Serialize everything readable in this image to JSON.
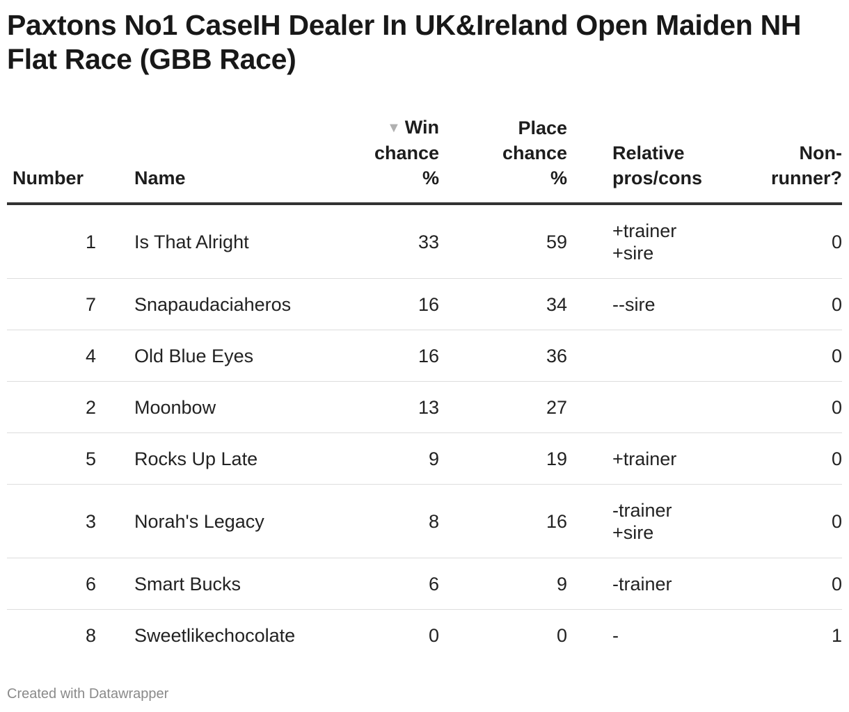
{
  "title": "Paxtons No1 CaseIH Dealer In UK&Ireland Open Maiden NH Flat Race (GBB Race)",
  "table": {
    "columns": {
      "number": "Number",
      "name": "Name",
      "win_line1": "Win",
      "win_line2": "chance",
      "win_line3": "%",
      "place_line1": "Place",
      "place_line2": "chance",
      "place_line3": "%",
      "relative_line1": "Relative",
      "relative_line2": "pros/cons",
      "nonrunner_line1": "Non-",
      "nonrunner_line2": "runner?"
    },
    "sort_indicator": "▼",
    "rows": [
      {
        "number": "1",
        "name": "Is That Alright",
        "win": "33",
        "place": "59",
        "rel1": "+trainer",
        "rel2": "+sire",
        "nr": "0"
      },
      {
        "number": "7",
        "name": "Snapaudaciaheros",
        "win": "16",
        "place": "34",
        "rel1": "--sire",
        "rel2": "",
        "nr": "0"
      },
      {
        "number": "4",
        "name": "Old Blue Eyes",
        "win": "16",
        "place": "36",
        "rel1": "",
        "rel2": "",
        "nr": "0"
      },
      {
        "number": "2",
        "name": "Moonbow",
        "win": "13",
        "place": "27",
        "rel1": "",
        "rel2": "",
        "nr": "0"
      },
      {
        "number": "5",
        "name": "Rocks Up Late",
        "win": "9",
        "place": "19",
        "rel1": "+trainer",
        "rel2": "",
        "nr": "0"
      },
      {
        "number": "3",
        "name": "Norah's Legacy",
        "win": "8",
        "place": "16",
        "rel1": "-trainer",
        "rel2": "+sire",
        "nr": "0"
      },
      {
        "number": "6",
        "name": "Smart Bucks",
        "win": "6",
        "place": "9",
        "rel1": "-trainer",
        "rel2": "",
        "nr": "0"
      },
      {
        "number": "8",
        "name": "Sweetlikechocolate",
        "win": "0",
        "place": "0",
        "rel1": "-",
        "rel2": "",
        "nr": "1"
      }
    ]
  },
  "footer": "Created with Datawrapper",
  "chart_data": {
    "type": "table",
    "columns": [
      "Number",
      "Name",
      "Win chance %",
      "Place chance %",
      "Relative pros/cons",
      "Non-runner?"
    ],
    "sorted_by": "Win chance %",
    "rows": [
      [
        1,
        "Is That Alright",
        33,
        59,
        "+trainer +sire",
        0
      ],
      [
        7,
        "Snapaudaciaheros",
        16,
        34,
        "--sire",
        0
      ],
      [
        4,
        "Old Blue Eyes",
        16,
        36,
        "",
        0
      ],
      [
        2,
        "Moonbow",
        13,
        27,
        "",
        0
      ],
      [
        5,
        "Rocks Up Late",
        9,
        19,
        "+trainer",
        0
      ],
      [
        3,
        "Norah's Legacy",
        8,
        16,
        "-trainer +sire",
        0
      ],
      [
        6,
        "Smart Bucks",
        6,
        9,
        "-trainer",
        0
      ],
      [
        8,
        "Sweetlikechocolate",
        0,
        0,
        "-",
        1
      ]
    ]
  }
}
